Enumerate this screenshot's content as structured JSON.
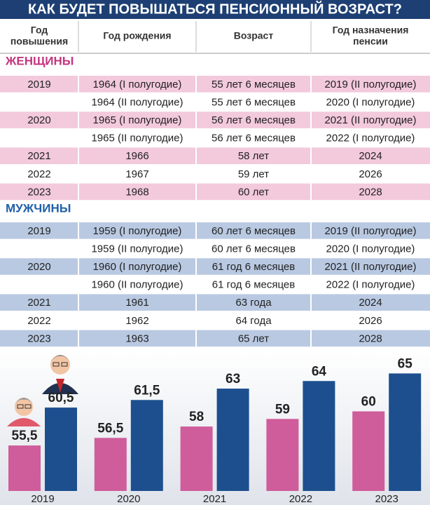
{
  "title": "КАК БУДЕТ ПОВЫШАТЬСЯ ПЕНСИОННЫЙ ВОЗРАСТ?",
  "table": {
    "header": [
      [
        "Год",
        "повышения"
      ],
      [
        "Год рождения"
      ],
      [
        "Возраст"
      ],
      [
        "Год назначения",
        "пенсии"
      ]
    ],
    "sections": [
      {
        "label": "ЖЕНЩИНЫ",
        "rows": [
          [
            "2019",
            "1964 (I полугодие)",
            "55 лет 6 месяцев",
            "2019 (II полугодие)"
          ],
          [
            null,
            "1964 (II полугодие)",
            "55 лет 6 месяцев",
            "2020 (I полугодие)"
          ],
          [
            "2020",
            "1965 (I полугодие)",
            "56 лет 6 месяцев",
            "2021 (II полугодие)"
          ],
          [
            null,
            "1965 (II полугодие)",
            "56 лет 6 месяцев",
            "2022 (I полугодие)"
          ],
          [
            "2021",
            "1966",
            "58 лет",
            "2024"
          ],
          [
            "2022",
            "1967",
            "59 лет",
            "2026"
          ],
          [
            "2023",
            "1968",
            "60 лет",
            "2028"
          ]
        ]
      },
      {
        "label": "МУЖЧИНЫ",
        "rows": [
          [
            "2019",
            "1959 (I полугодие)",
            "60 лет 6 месяцев",
            "2019 (II полугодие)"
          ],
          [
            null,
            "1959 (II полугодие)",
            "60 лет 6 месяцев",
            "2020 (I полугодие)"
          ],
          [
            "2020",
            "1960 (I полугодие)",
            "61 год 6 месяцев",
            "2021 (II полугодие)"
          ],
          [
            null,
            "1960 (II полугодие)",
            "61 год 6 месяцев",
            "2022 (I полугодие)"
          ],
          [
            "2021",
            "1961",
            "63 года",
            "2024"
          ],
          [
            "2022",
            "1962",
            "64 года",
            "2026"
          ],
          [
            "2023",
            "1963",
            "65 лет",
            "2028"
          ]
        ]
      }
    ]
  },
  "chart_data": {
    "type": "bar",
    "categories": [
      "2019",
      "2020",
      "2021",
      "2022",
      "2023"
    ],
    "series": [
      {
        "color": "#cf5d9b",
        "values": [
          55.5,
          56.5,
          58,
          59,
          60
        ],
        "value_labels": [
          "55,5",
          "56,5",
          "58",
          "59",
          "60"
        ]
      },
      {
        "color": "#1d4f8f",
        "values": [
          60.5,
          61.5,
          63,
          64,
          65
        ],
        "value_labels": [
          "60,5",
          "61,5",
          "63",
          "64",
          "65"
        ]
      }
    ],
    "ylim": [
      49.5,
      68
    ]
  }
}
